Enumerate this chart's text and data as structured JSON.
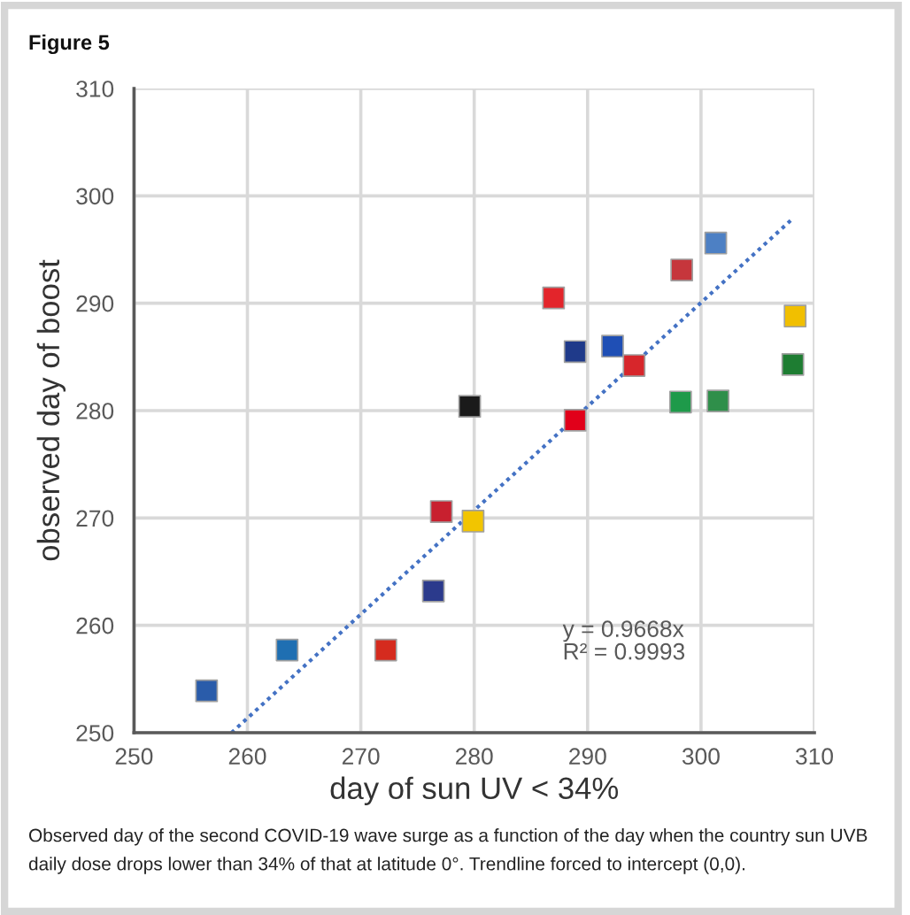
{
  "chart_data": {
    "type": "scatter",
    "title": "Figure 5",
    "xlabel": "day of sun UV < 34%",
    "ylabel": "observed day of boost",
    "xlim": [
      250,
      310
    ],
    "ylim": [
      250,
      310
    ],
    "xticks": [
      250,
      260,
      270,
      280,
      290,
      300,
      310
    ],
    "yticks": [
      250,
      260,
      270,
      280,
      290,
      300,
      310
    ],
    "grid": true,
    "series": [
      {
        "marker": "square",
        "x": [
          256.4,
          263.5,
          272.2,
          276.4,
          277.1,
          279.9,
          279.6,
          287.0,
          288.9,
          292.2,
          294.1,
          288.9,
          298.3,
          301.3,
          298.2,
          301.5,
          308.3,
          308.1
        ],
        "values": [
          253.9,
          257.7,
          257.7,
          263.2,
          270.6,
          269.7,
          280.4,
          290.5,
          285.5,
          286.0,
          284.2,
          279.1,
          293.1,
          295.6,
          280.8,
          280.9,
          288.8,
          284.3
        ],
        "colors": [
          "#2a5caa",
          "#1f6fb2",
          "#d52b1e",
          "#2b3a8c",
          "#c8202f",
          "#f2c500",
          "#1a1a1a",
          "#e3252b",
          "#1f3a8a",
          "#1f4fb5",
          "#d7262b",
          "#e1001a",
          "#c6363c",
          "#4d80c4",
          "#1e9a4a",
          "#2f8f4a",
          "#f1bf00",
          "#1e7d32"
        ]
      },
      {
        "type": "line",
        "x": [
          258.6,
          307.9
        ],
        "values": [
          250.0,
          297.7
        ],
        "color": "#4472c4",
        "line_style": "dotted"
      }
    ],
    "annotations": [
      "y = 0.9668x\nR² = 0.9993",
      "Observed day of the second COVID-19 wave surge as a function of the day when the country sun UVB daily dose drops lower than 34% of that at latitude 0°. Trendline forced to intercept (0,0)."
    ]
  }
}
